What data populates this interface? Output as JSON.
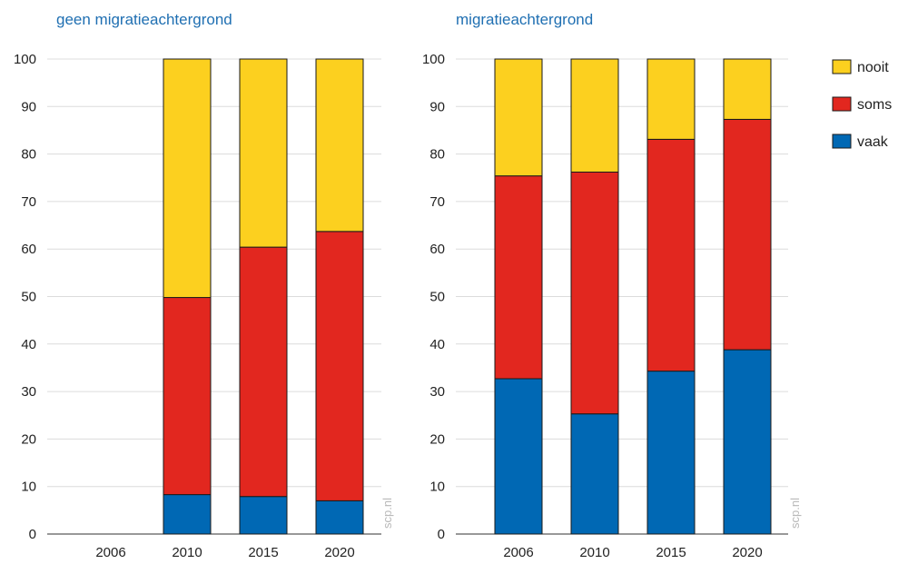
{
  "watermark": "scp.nl",
  "colors": {
    "vaak": "#0068b4",
    "soms": "#e2271f",
    "nooit": "#fcd01f",
    "title": "#1f6fb2",
    "grid": "#dcdcdc"
  },
  "legend": [
    {
      "key": "nooit",
      "label": "nooit"
    },
    {
      "key": "soms",
      "label": "soms"
    },
    {
      "key": "vaak",
      "label": "vaak"
    }
  ],
  "chart_data": [
    {
      "type": "bar",
      "stacked": true,
      "title": "geen migratieachtergrond",
      "xlabel": "",
      "ylabel": "",
      "ylim": [
        0,
        100
      ],
      "yticks": [
        0,
        10,
        20,
        30,
        40,
        50,
        60,
        70,
        80,
        90,
        100
      ],
      "grid": true,
      "categories": [
        "2006",
        "2010",
        "2015",
        "2020"
      ],
      "series": [
        {
          "name": "vaak",
          "values": [
            null,
            8.3,
            7.9,
            7.0
          ]
        },
        {
          "name": "soms",
          "values": [
            null,
            41.5,
            52.5,
            56.7
          ]
        },
        {
          "name": "nooit",
          "values": [
            null,
            50.2,
            39.6,
            36.3
          ]
        }
      ]
    },
    {
      "type": "bar",
      "stacked": true,
      "title": "migratieachtergrond",
      "xlabel": "",
      "ylabel": "",
      "ylim": [
        0,
        100
      ],
      "yticks": [
        0,
        10,
        20,
        30,
        40,
        50,
        60,
        70,
        80,
        90,
        100
      ],
      "grid": true,
      "categories": [
        "2006",
        "2010",
        "2015",
        "2020"
      ],
      "series": [
        {
          "name": "vaak",
          "values": [
            32.7,
            25.3,
            34.3,
            38.8
          ]
        },
        {
          "name": "soms",
          "values": [
            42.7,
            50.9,
            48.8,
            48.5
          ]
        },
        {
          "name": "nooit",
          "values": [
            24.6,
            23.8,
            16.9,
            12.7
          ]
        }
      ]
    }
  ]
}
